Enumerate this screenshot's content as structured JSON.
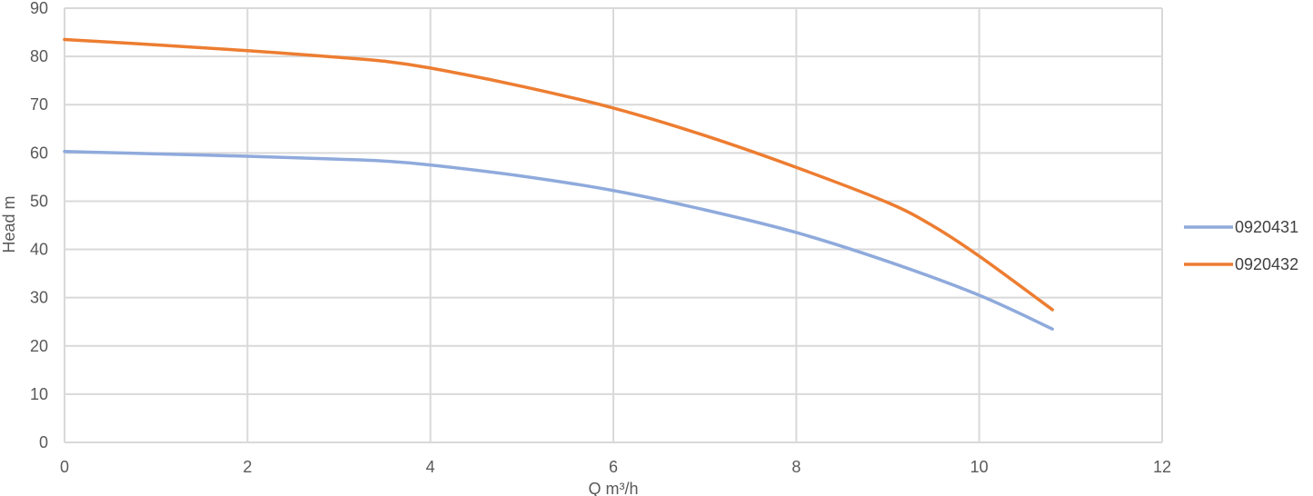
{
  "chart_data": {
    "type": "line",
    "title": "",
    "xlabel": "Q m³/h",
    "ylabel": "Head m",
    "xlim": [
      0,
      12
    ],
    "ylim": [
      0,
      90
    ],
    "xticks": [
      0,
      2,
      4,
      6,
      8,
      10,
      12
    ],
    "yticks": [
      0,
      10,
      20,
      30,
      40,
      50,
      60,
      70,
      80,
      90
    ],
    "grid": true,
    "legend_position": "right",
    "series": [
      {
        "name": "0920431",
        "color": "#8faadc",
        "x": [
          0,
          1,
          2,
          3,
          3.5,
          4,
          5,
          6,
          7,
          8,
          9,
          10,
          10.8
        ],
        "y": [
          60.3,
          59.8,
          59.3,
          58.7,
          58.3,
          57.5,
          55.2,
          52.2,
          48.2,
          43.5,
          37.5,
          30.5,
          23.5
        ]
      },
      {
        "name": "0920432",
        "color": "#ed7d31",
        "x": [
          0,
          1,
          2,
          3,
          3.5,
          4,
          5,
          6,
          7,
          8,
          9,
          9.5,
          10,
          10.8
        ],
        "y": [
          83.5,
          82.4,
          81.2,
          79.8,
          79.0,
          77.6,
          73.8,
          69.3,
          63.6,
          57.0,
          49.7,
          44.8,
          38.6,
          27.5
        ]
      }
    ]
  }
}
